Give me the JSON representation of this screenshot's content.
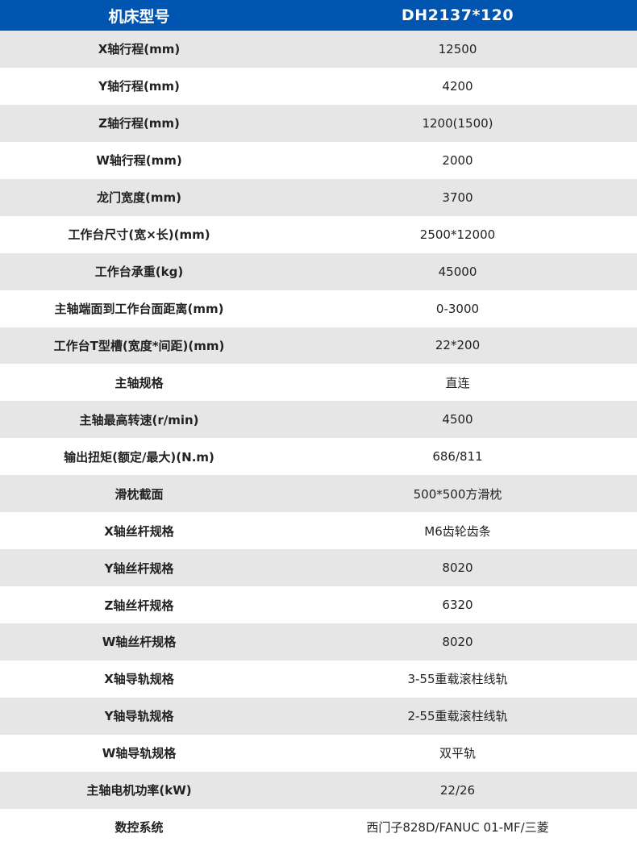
{
  "header": {
    "label": "机床型号",
    "value": "DH2137*120"
  },
  "colors": {
    "header_bg": "#0055b0",
    "stripe": "#e6e6e6"
  },
  "rows": [
    {
      "label": "X轴行程(mm)",
      "value": "12500"
    },
    {
      "label": "Y轴行程(mm)",
      "value": "4200"
    },
    {
      "label": "Z轴行程(mm)",
      "value": "1200(1500)"
    },
    {
      "label": "W轴行程(mm)",
      "value": "2000"
    },
    {
      "label": "龙门宽度(mm)",
      "value": "3700"
    },
    {
      "label": "工作台尺寸(宽×长)(mm)",
      "value": "2500*12000"
    },
    {
      "label": "工作台承重(kg)",
      "value": "45000"
    },
    {
      "label": "主轴端面到工作台面距离(mm)",
      "value": "0-3000"
    },
    {
      "label": "工作台T型槽(宽度*间距)(mm)",
      "value": "22*200"
    },
    {
      "label": "主轴规格",
      "value": "直连"
    },
    {
      "label": "主轴最高转速(r/min)",
      "value": "4500"
    },
    {
      "label": "输出扭矩(额定/最大)(N.m)",
      "value": "686/811"
    },
    {
      "label": "滑枕截面",
      "value": "500*500方滑枕"
    },
    {
      "label": "X轴丝杆规格",
      "value": "M6齿轮齿条"
    },
    {
      "label": "Y轴丝杆规格",
      "value": "8020"
    },
    {
      "label": "Z轴丝杆规格",
      "value": "6320"
    },
    {
      "label": "W轴丝杆规格",
      "value": "8020"
    },
    {
      "label": "X轴导轨规格",
      "value": "3-55重载滚柱线轨"
    },
    {
      "label": "Y轴导轨规格",
      "value": "2-55重载滚柱线轨"
    },
    {
      "label": "W轴导轨规格",
      "value": "双平轨"
    },
    {
      "label": "主轴电机功率(kW)",
      "value": "22/26"
    },
    {
      "label": "数控系统",
      "value": "西门子828D/FANUC 01-MF/三菱"
    }
  ]
}
